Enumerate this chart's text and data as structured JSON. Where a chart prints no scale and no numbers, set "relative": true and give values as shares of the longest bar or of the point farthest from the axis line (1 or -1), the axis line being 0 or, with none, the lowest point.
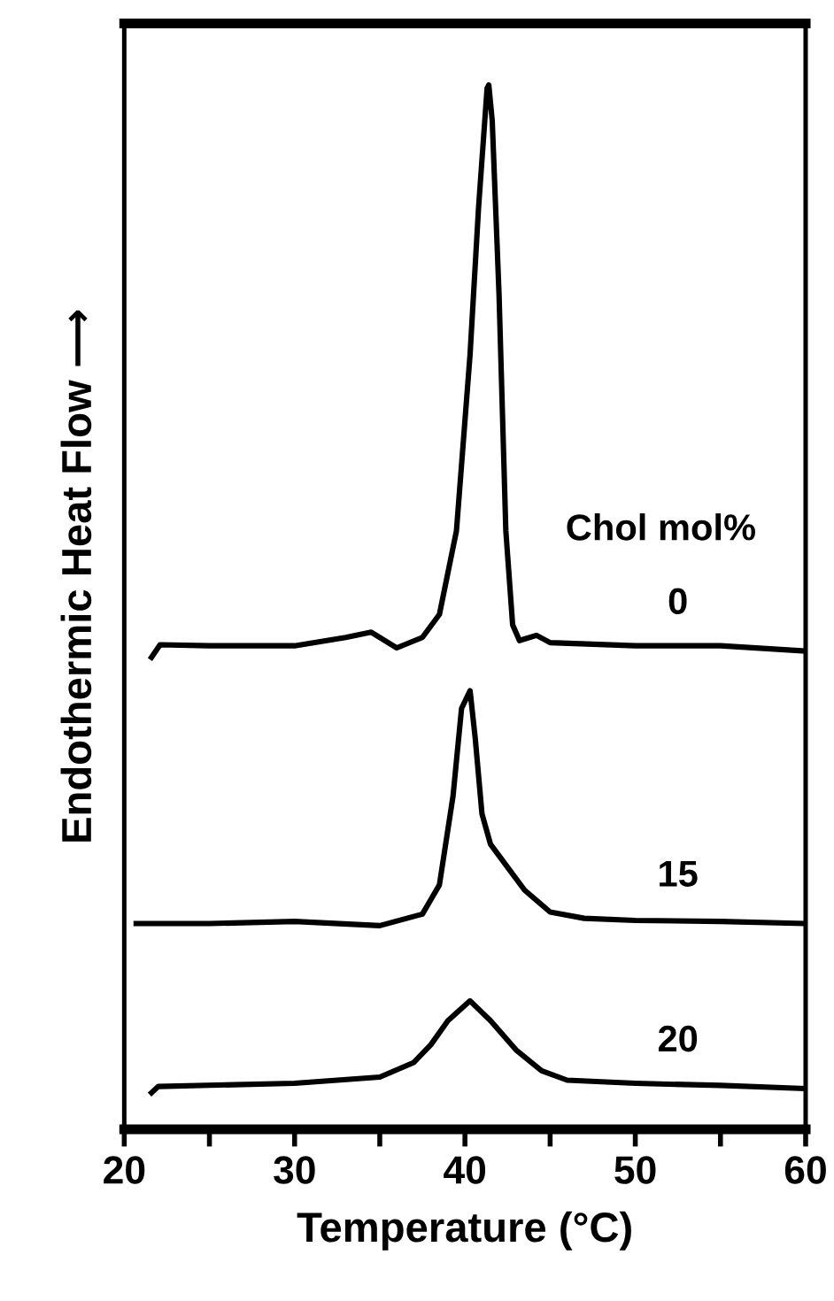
{
  "chart_data": {
    "type": "line",
    "relative": true,
    "xlabel": "Temperature (°C)",
    "ylabel": "Endothermic Heat Flow ⟶",
    "legend_title": "Chol mol%",
    "xlim": [
      20,
      60
    ],
    "xticks": [
      20,
      {
        "value": 25,
        "label": null
      },
      30,
      {
        "value": 35,
        "label": null
      },
      40,
      {
        "value": 45,
        "label": null
      },
      50,
      {
        "value": 55,
        "label": null
      },
      60
    ],
    "tick_labels": "x",
    "legend": false,
    "grid": false,
    "marker": "none",
    "line_style": "solid",
    "series": [
      {
        "name": "0",
        "color": "#000000",
        "x": [
          21.6,
          22.1,
          25,
          30,
          33,
          34.5,
          36,
          37.5,
          38.5,
          39.5,
          40.3,
          40.8,
          41.3,
          41.4,
          41.6,
          42.0,
          42.4,
          42.8,
          43.2,
          44.2,
          45,
          50,
          55,
          60
        ],
        "values": [
          0.452,
          0.464,
          0.463,
          0.463,
          0.471,
          0.476,
          0.461,
          0.471,
          0.493,
          0.573,
          0.742,
          0.883,
          0.997,
          1.0,
          0.966,
          0.8,
          0.573,
          0.483,
          0.468,
          0.473,
          0.466,
          0.463,
          0.463,
          0.458
        ]
      },
      {
        "name": "15",
        "color": "#000000",
        "x": [
          20.7,
          25,
          30,
          35,
          37.5,
          38.5,
          39.3,
          39.8,
          40.3,
          40.6,
          41.0,
          41.5,
          42.5,
          43.5,
          45,
          47,
          50,
          55,
          60
        ],
        "values": [
          0.197,
          0.197,
          0.199,
          0.195,
          0.206,
          0.234,
          0.319,
          0.403,
          0.42,
          0.375,
          0.302,
          0.273,
          0.251,
          0.229,
          0.208,
          0.202,
          0.2,
          0.199,
          0.197
        ]
      },
      {
        "name": "20",
        "color": "#000000",
        "x": [
          21.6,
          22,
          30,
          35,
          37,
          38,
          39,
          40.3,
          41.5,
          43,
          44.5,
          46,
          50,
          55,
          60
        ],
        "values": [
          0.035,
          0.041,
          0.044,
          0.05,
          0.064,
          0.081,
          0.104,
          0.123,
          0.104,
          0.076,
          0.056,
          0.047,
          0.044,
          0.042,
          0.039
        ]
      }
    ]
  }
}
